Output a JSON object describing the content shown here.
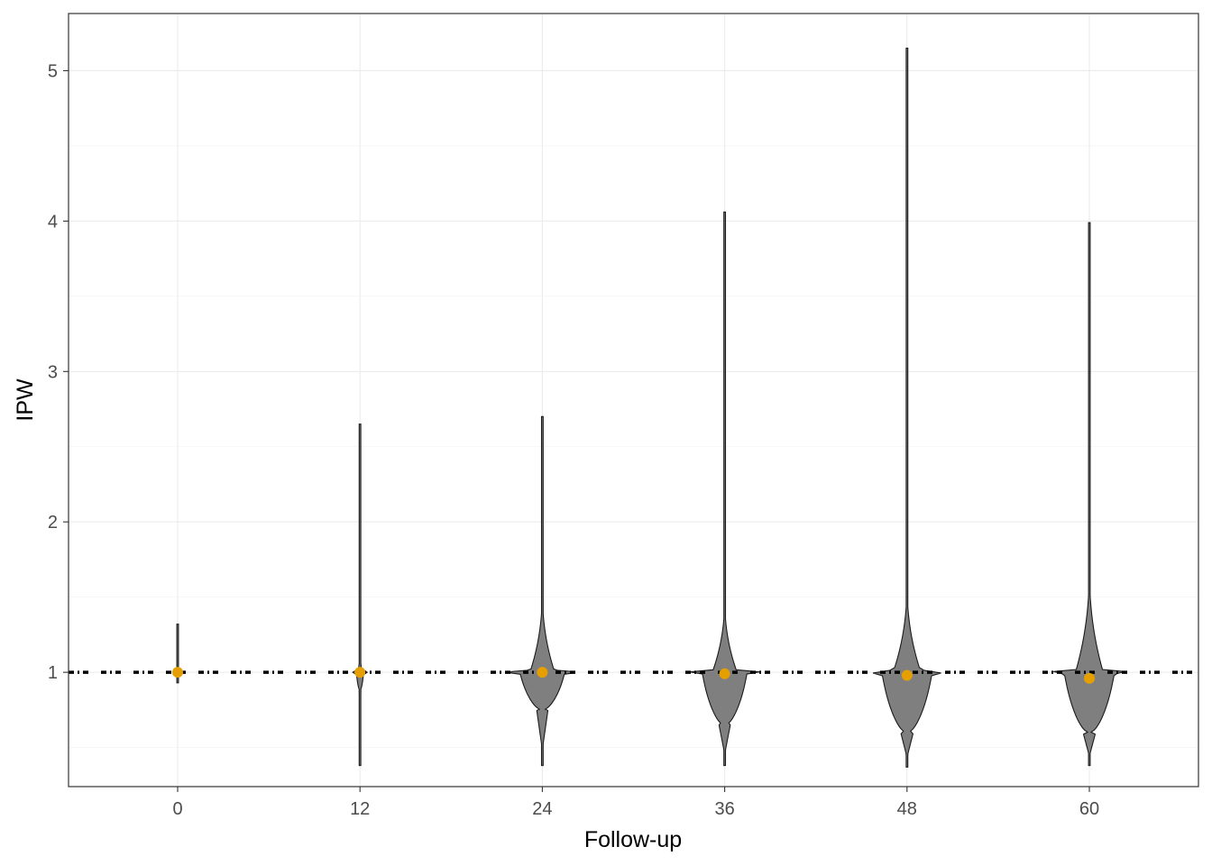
{
  "chart_data": {
    "type": "violin",
    "xlabel": "Follow-up",
    "ylabel": "IPW",
    "x_ticks": [
      "0",
      "12",
      "24",
      "36",
      "48",
      "60"
    ],
    "y_ticks": [
      "1",
      "2",
      "3",
      "4",
      "5"
    ],
    "ylim": [
      0.24,
      5.38
    ],
    "grid": true,
    "reference_line": 1.0,
    "groups": [
      {
        "x": 0,
        "mean": 1.0,
        "min": 0.93,
        "max": 1.32
      },
      {
        "x": 12,
        "mean": 1.0,
        "min": 0.38,
        "max": 2.65
      },
      {
        "x": 24,
        "mean": 1.0,
        "min": 0.38,
        "max": 2.7
      },
      {
        "x": 36,
        "mean": 0.99,
        "min": 0.38,
        "max": 4.06
      },
      {
        "x": 48,
        "mean": 0.98,
        "min": 0.37,
        "max": 5.15
      },
      {
        "x": 60,
        "mean": 0.96,
        "min": 0.38,
        "max": 3.99
      }
    ],
    "colors": {
      "violin_fill": "#7f7f7f",
      "violin_stroke": "#1a1a1a",
      "mean_point": "#E69F00",
      "reference_line": "#000000",
      "grid_major": "#ebebeb",
      "panel_border": "#333333"
    }
  }
}
